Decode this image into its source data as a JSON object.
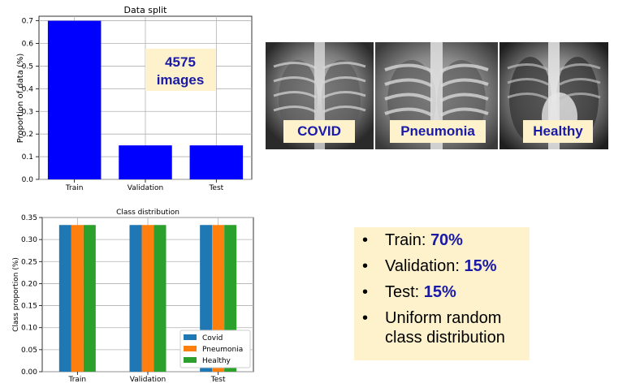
{
  "chart_data": [
    {
      "type": "bar",
      "title": "Data split",
      "ylabel": "Proportion of data (%)",
      "xlabel": "",
      "categories": [
        "Train",
        "Validation",
        "Test"
      ],
      "values": [
        0.7,
        0.15,
        0.15
      ],
      "ylim": [
        0,
        0.72
      ],
      "yticks": [
        "0.0",
        "0.1",
        "0.2",
        "0.3",
        "0.4",
        "0.5",
        "0.6",
        "0.7"
      ],
      "color": "#0000ff",
      "grid": true,
      "annotation": {
        "line1": "4575",
        "line2": "images"
      }
    },
    {
      "type": "bar",
      "title": "Class distribution",
      "ylabel": "Class proportion (%)",
      "xlabel": "",
      "categories": [
        "Train",
        "Validation",
        "Test"
      ],
      "series": [
        {
          "name": "Covid",
          "values": [
            0.333,
            0.333,
            0.333
          ],
          "color": "#1f77b4"
        },
        {
          "name": "Pneumonia",
          "values": [
            0.333,
            0.333,
            0.333
          ],
          "color": "#ff7f0e"
        },
        {
          "name": "Healthy",
          "values": [
            0.333,
            0.333,
            0.333
          ],
          "color": "#2ca02c"
        }
      ],
      "ylim": [
        0,
        0.35
      ],
      "yticks": [
        "0.00",
        "0.05",
        "0.10",
        "0.15",
        "0.20",
        "0.25",
        "0.30",
        "0.35"
      ],
      "grid": true,
      "legend": "bottom-right"
    }
  ],
  "images": {
    "covid": "COVID",
    "pneumonia": "Pneumonia",
    "healthy": "Healthy"
  },
  "summary": {
    "train_label": "Train: ",
    "train_value": "70%",
    "validation_label": "Validation: ",
    "validation_value": "15%",
    "test_label": "Test: ",
    "test_value": "15%",
    "uniform_line1": "Uniform random",
    "uniform_line2": "class distribution",
    "bullet": "•"
  }
}
